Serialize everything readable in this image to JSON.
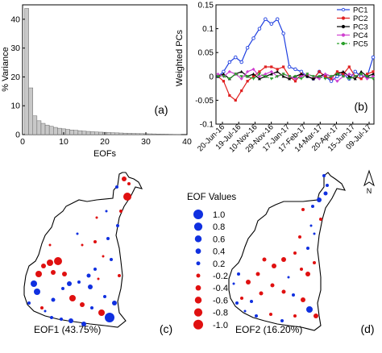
{
  "chart_data": [
    {
      "type": "bar",
      "panel_label": "(a)",
      "xlabel": "EOFs",
      "ylabel": "% Variance",
      "xlim": [
        0,
        40
      ],
      "ylim": [
        0,
        45
      ],
      "xticks": [
        0,
        10,
        20,
        30,
        40
      ],
      "yticks": [
        0,
        10,
        20,
        30,
        40
      ],
      "categories": [
        1,
        2,
        3,
        4,
        5,
        6,
        7,
        8,
        9,
        10,
        11,
        12,
        13,
        14,
        15,
        16,
        17,
        18,
        19,
        20,
        21,
        22,
        23,
        24,
        25,
        26,
        27,
        28,
        29,
        30,
        31,
        32,
        33,
        34,
        35,
        36,
        37,
        38
      ],
      "values": [
        43.75,
        16.2,
        6.5,
        4.8,
        3.9,
        3.3,
        2.9,
        2.5,
        2.2,
        2.0,
        1.8,
        1.6,
        1.5,
        1.35,
        1.2,
        1.1,
        1.0,
        0.9,
        0.85,
        0.8,
        0.72,
        0.65,
        0.6,
        0.55,
        0.5,
        0.45,
        0.42,
        0.38,
        0.34,
        0.3,
        0.27,
        0.24,
        0.2,
        0.17,
        0.14,
        0.11,
        0.08,
        0.05
      ],
      "bar_color": "#c8c8c8"
    },
    {
      "type": "line",
      "panel_label": "(b)",
      "ylabel": "Weighted PCs",
      "ylim": [
        -0.1,
        0.15
      ],
      "yticks": [
        -0.1,
        -0.05,
        0,
        0.05,
        0.1,
        0.15
      ],
      "ytick_labels": [
        "-0.1",
        "-0.05",
        "0",
        "0.05",
        "0.1",
        "0.15"
      ],
      "x": [
        "2016-06-20",
        "2016-07-04",
        "2016-07-19",
        "2016-08-03",
        "2016-08-18",
        "2016-09-02",
        "2016-09-17",
        "2016-10-02",
        "2016-10-17",
        "2016-11-01",
        "2016-11-16",
        "2016-12-01",
        "2016-12-16",
        "2016-12-31",
        "2017-01-15",
        "2017-01-30",
        "2017-02-14",
        "2017-03-01",
        "2017-03-16",
        "2017-03-31",
        "2017-04-15",
        "2017-04-30",
        "2017-05-15",
        "2017-05-30",
        "2017-06-14",
        "2017-06-29",
        "2017-07-14"
      ],
      "xlim": [
        "2016-06-15",
        "2017-07-16"
      ],
      "xtick_labels": [
        "20-Jun-16",
        "19-Jul-16",
        "10-Nov-16",
        "29-Nov-16",
        "17-Jan-17",
        "17-Feb-17",
        "14-Mar-17",
        "20-Apr-17",
        "15-Jun-17",
        "09-Jul-17"
      ],
      "legend_position": "top-right",
      "series": [
        {
          "name": "PC1",
          "color": "#1f3fe0",
          "marker": "circle-open",
          "dash": "solid",
          "values": [
            0.0,
            0.01,
            0.03,
            0.04,
            0.03,
            0.06,
            0.08,
            0.1,
            0.12,
            0.11,
            0.12,
            0.09,
            0.02,
            0.015,
            0.01,
            0.0,
            -0.005,
            0.01,
            0.0,
            -0.01,
            0.0,
            0.005,
            -0.005,
            0.01,
            0.0,
            0.0,
            0.04
          ]
        },
        {
          "name": "PC2",
          "color": "#e02020",
          "marker": "square",
          "dash": "solid",
          "values": [
            0.0,
            -0.01,
            -0.04,
            -0.05,
            -0.03,
            -0.01,
            0.0,
            0.01,
            0.02,
            0.02,
            0.015,
            0.02,
            0.0,
            -0.01,
            0.005,
            0.0,
            -0.005,
            0.01,
            0.0,
            -0.005,
            0.01,
            0.005,
            0.02,
            0.0,
            -0.005,
            0.005,
            0.01
          ]
        },
        {
          "name": "PC3",
          "color": "#000000",
          "marker": "triangle",
          "dash": "solid",
          "values": [
            0.0,
            0.005,
            -0.005,
            0.005,
            0.01,
            0.0,
            0.005,
            -0.005,
            0.0,
            0.005,
            0.01,
            0.0,
            -0.005,
            0.0,
            0.005,
            0.0,
            -0.005,
            0.0,
            0.005,
            0.0,
            0.005,
            0.01,
            0.0,
            -0.005,
            0.01,
            0.0,
            0.005
          ]
        },
        {
          "name": "PC4",
          "color": "#d040d0",
          "marker": "diamond",
          "dash": "solid",
          "values": [
            0.005,
            0.0,
            0.01,
            0.005,
            -0.005,
            0.01,
            0.015,
            0.0,
            0.005,
            0.01,
            0.0,
            0.005,
            0.0,
            -0.005,
            0.0,
            0.005,
            0.0,
            -0.005,
            0.005,
            0.0,
            -0.01,
            0.0,
            0.005,
            0.0,
            0.005,
            -0.005,
            0.0
          ]
        },
        {
          "name": "PC5",
          "color": "#2aa02a",
          "marker": "triangle-down",
          "dash": "dashed",
          "values": [
            0.0,
            0.0,
            -0.005,
            0.005,
            0.0,
            0.0,
            -0.005,
            0.005,
            0.0,
            -0.005,
            0.0,
            0.005,
            0.0,
            0.0,
            -0.005,
            0.005,
            0.0,
            0.0,
            -0.005,
            0.0,
            0.005,
            0.0,
            -0.005,
            0.0,
            0.005,
            0.0,
            -0.005
          ]
        }
      ]
    },
    {
      "type": "map",
      "panel_label": "(c)",
      "caption": "EOF1 (43.75%)",
      "legend_title": "EOF Values",
      "legend_values": [
        1.0,
        0.8,
        0.6,
        0.4,
        0.2,
        -0.2,
        -0.4,
        -0.6,
        -0.8,
        -1.0
      ],
      "legend_labels": [
        "1.0",
        "0.8",
        "0.6",
        "0.4",
        "0.2",
        "-0.2",
        "-0.4",
        "-0.6",
        "-0.8",
        "-1.0"
      ],
      "positive_color": "#1030e0",
      "negative_color": "#e01010"
    },
    {
      "type": "map",
      "panel_label": "(d)",
      "caption": "EOF2 (16.20%)",
      "north_label": "N"
    }
  ]
}
